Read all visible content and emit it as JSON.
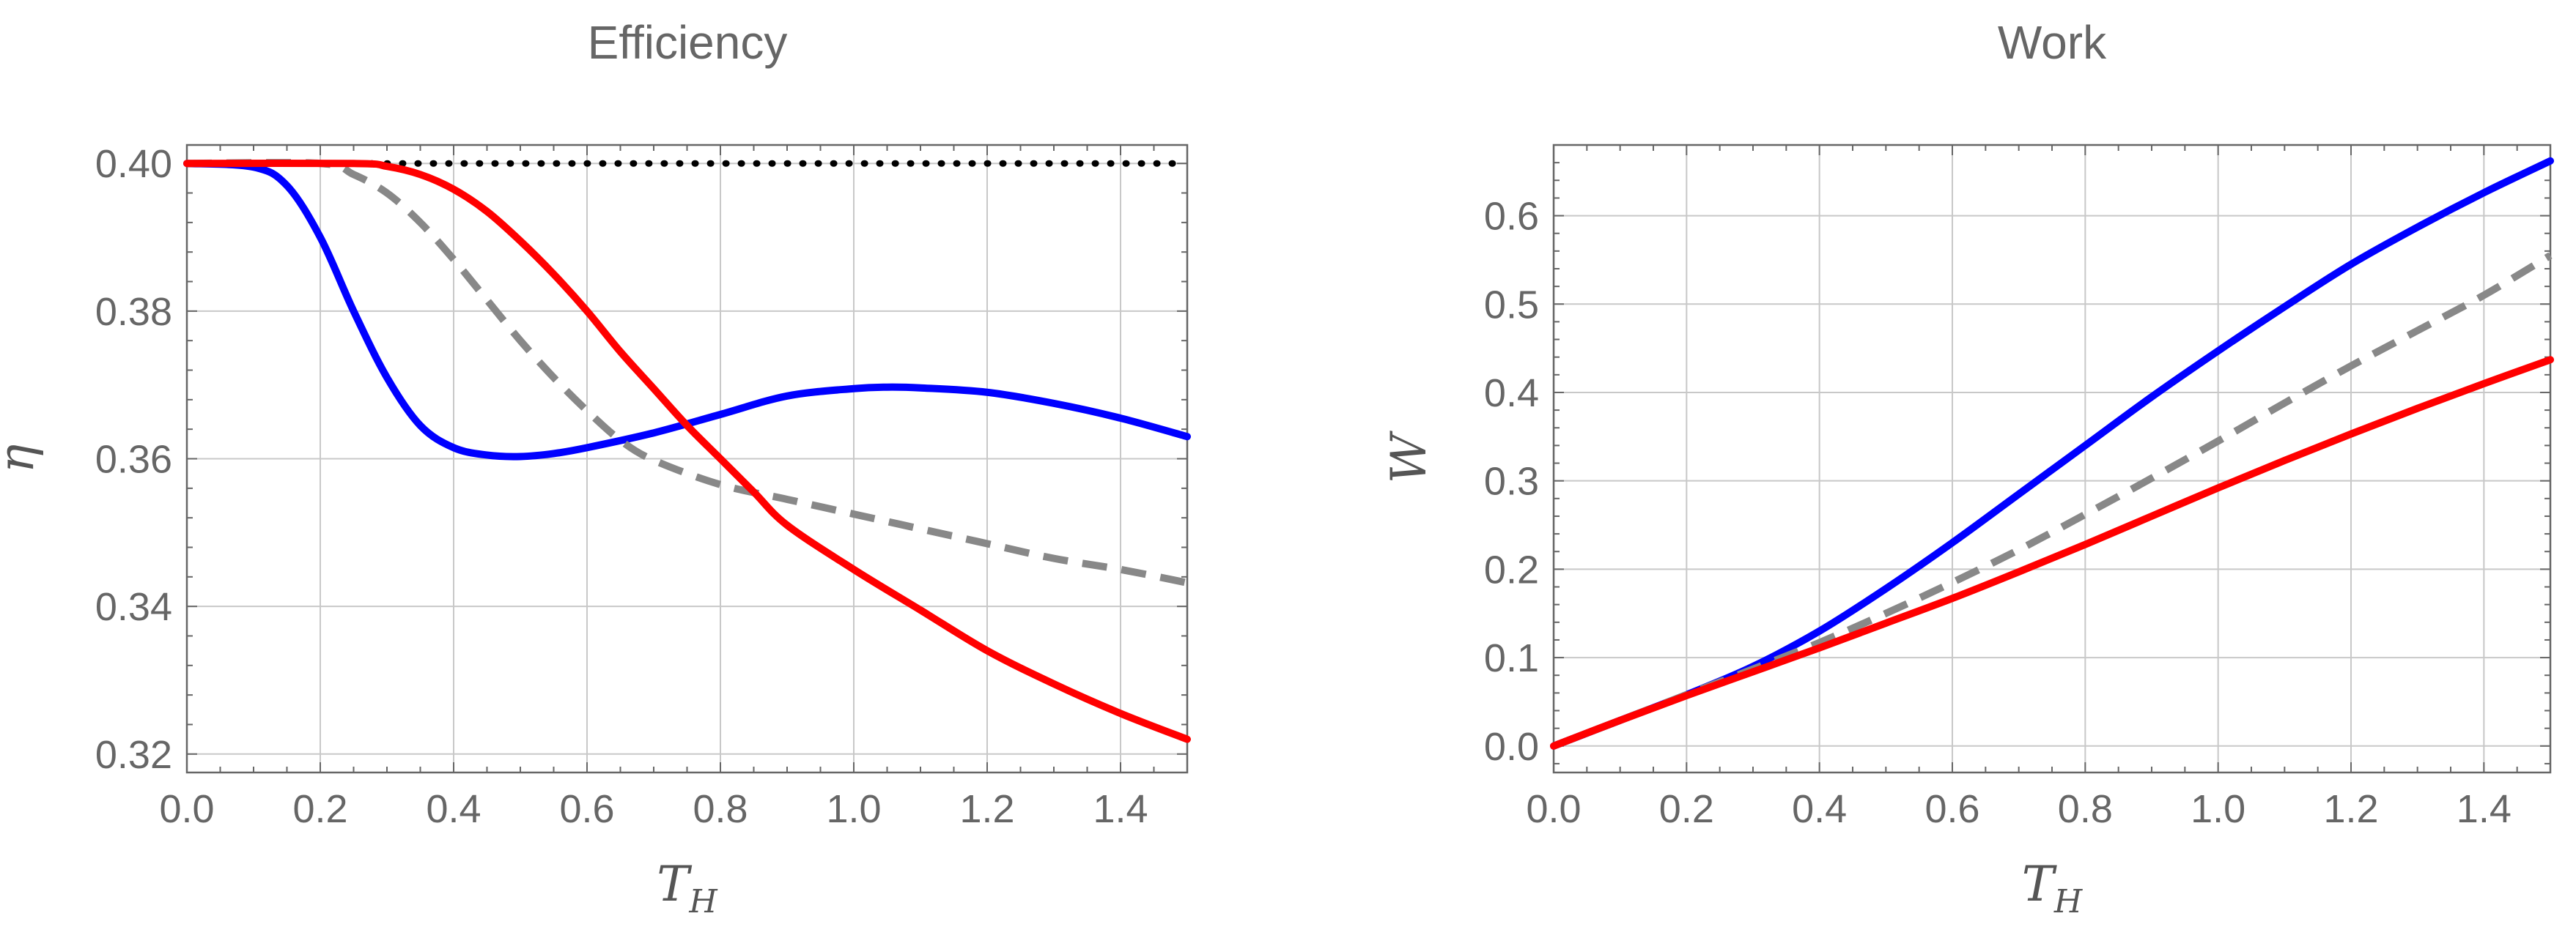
{
  "chart_data": [
    {
      "type": "line",
      "title": "Efficiency",
      "xlabel": "T",
      "xlabel_sub": "H",
      "ylabel": "η",
      "xlim": [
        0.0,
        1.5
      ],
      "ylim": [
        0.3175,
        0.4025
      ],
      "xticks": [
        0.0,
        0.2,
        0.4,
        0.6,
        0.8,
        1.0,
        1.2,
        1.4
      ],
      "xtick_labels": [
        "0.0",
        "0.2",
        "0.4",
        "0.6",
        "0.8",
        "1.0",
        "1.2",
        "1.4"
      ],
      "yticks": [
        0.32,
        0.34,
        0.36,
        0.38,
        0.4
      ],
      "ytick_labels": [
        "0.32",
        "0.34",
        "0.36",
        "0.38",
        "0.40"
      ],
      "grid": true,
      "series": [
        {
          "style": "dotted",
          "color": "#000000",
          "x": [
            0.0,
            1.5
          ],
          "y": [
            0.4,
            0.4
          ]
        },
        {
          "style": "solid",
          "color": "#0000ff",
          "x": [
            0.0,
            0.1,
            0.15,
            0.2,
            0.25,
            0.3,
            0.35,
            0.4,
            0.45,
            0.5,
            0.55,
            0.6,
            0.7,
            0.8,
            0.9,
            1.0,
            1.05,
            1.1,
            1.2,
            1.3,
            1.4,
            1.5
          ],
          "y": [
            0.4,
            0.3995,
            0.397,
            0.39,
            0.38,
            0.371,
            0.3645,
            0.3615,
            0.3605,
            0.3603,
            0.3607,
            0.3615,
            0.3635,
            0.366,
            0.3685,
            0.3695,
            0.3697,
            0.3696,
            0.369,
            0.3675,
            0.3655,
            0.363
          ]
        },
        {
          "style": "dashed",
          "color": "#888888",
          "x": [
            0.0,
            0.2,
            0.25,
            0.3,
            0.35,
            0.4,
            0.45,
            0.5,
            0.55,
            0.6,
            0.65,
            0.7,
            0.8,
            0.9,
            1.0,
            1.1,
            1.2,
            1.3,
            1.4,
            1.5
          ],
          "y": [
            0.4,
            0.4,
            0.3985,
            0.396,
            0.392,
            0.387,
            0.3815,
            0.376,
            0.371,
            0.3665,
            0.3625,
            0.3598,
            0.3565,
            0.3545,
            0.3525,
            0.3505,
            0.3485,
            0.3465,
            0.345,
            0.3432
          ]
        },
        {
          "style": "solid",
          "color": "#ff0000",
          "x": [
            0.0,
            0.25,
            0.3,
            0.35,
            0.4,
            0.45,
            0.5,
            0.55,
            0.6,
            0.65,
            0.7,
            0.75,
            0.8,
            0.85,
            0.9,
            1.0,
            1.1,
            1.2,
            1.3,
            1.4,
            1.5
          ],
          "y": [
            0.4,
            0.4,
            0.3996,
            0.3985,
            0.3965,
            0.3935,
            0.3895,
            0.385,
            0.38,
            0.3745,
            0.3695,
            0.3645,
            0.36,
            0.3555,
            0.351,
            0.345,
            0.3395,
            0.334,
            0.3295,
            0.3255,
            0.322
          ]
        }
      ]
    },
    {
      "type": "line",
      "title": "Work",
      "xlabel": "T",
      "xlabel_sub": "H",
      "ylabel": "W",
      "xlim": [
        0.0,
        1.5
      ],
      "ylim": [
        -0.03,
        0.68
      ],
      "xticks": [
        0.0,
        0.2,
        0.4,
        0.6,
        0.8,
        1.0,
        1.2,
        1.4
      ],
      "xtick_labels": [
        "0.0",
        "0.2",
        "0.4",
        "0.6",
        "0.8",
        "1.0",
        "1.2",
        "1.4"
      ],
      "yticks": [
        0.0,
        0.1,
        0.2,
        0.3,
        0.4,
        0.5,
        0.6
      ],
      "ytick_labels": [
        "0.0",
        "0.1",
        "0.2",
        "0.3",
        "0.4",
        "0.5",
        "0.6"
      ],
      "grid": true,
      "series": [
        {
          "style": "solid",
          "color": "#0000ff",
          "x": [
            0.0,
            0.1,
            0.2,
            0.3,
            0.4,
            0.5,
            0.6,
            0.7,
            0.8,
            0.9,
            1.0,
            1.1,
            1.2,
            1.3,
            1.4,
            1.5
          ],
          "y": [
            0.0,
            0.029,
            0.058,
            0.09,
            0.13,
            0.178,
            0.23,
            0.285,
            0.34,
            0.395,
            0.447,
            0.497,
            0.545,
            0.587,
            0.626,
            0.662
          ]
        },
        {
          "style": "dashed",
          "color": "#888888",
          "x": [
            0.0,
            0.1,
            0.2,
            0.3,
            0.4,
            0.5,
            0.6,
            0.7,
            0.8,
            0.9,
            1.0,
            1.1,
            1.2,
            1.3,
            1.4,
            1.5
          ],
          "y": [
            0.0,
            0.029,
            0.058,
            0.087,
            0.117,
            0.15,
            0.185,
            0.222,
            0.262,
            0.303,
            0.345,
            0.388,
            0.43,
            0.47,
            0.51,
            0.555
          ]
        },
        {
          "style": "solid",
          "color": "#ff0000",
          "x": [
            0.0,
            0.1,
            0.2,
            0.3,
            0.4,
            0.5,
            0.6,
            0.7,
            0.8,
            0.9,
            1.0,
            1.1,
            1.2,
            1.3,
            1.4,
            1.5
          ],
          "y": [
            0.0,
            0.029,
            0.057,
            0.084,
            0.111,
            0.139,
            0.167,
            0.197,
            0.228,
            0.26,
            0.292,
            0.323,
            0.353,
            0.382,
            0.41,
            0.437
          ]
        }
      ]
    }
  ]
}
